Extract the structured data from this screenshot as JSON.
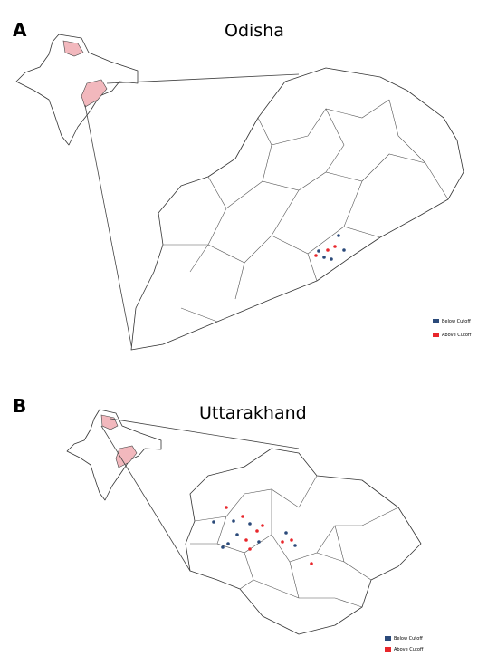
{
  "panels": [
    {
      "label": "A",
      "title": "Odisha",
      "legend": [
        {
          "label": "Below Cutoff",
          "color": "#2b4a7a"
        },
        {
          "label": "Above Cutoff",
          "color": "#e8262b"
        }
      ]
    },
    {
      "label": "B",
      "title": "Uttarakhand",
      "legend": [
        {
          "label": "Below Cutoff",
          "color": "#2b4a7a"
        },
        {
          "label": "Above Cutoff",
          "color": "#e8262b"
        }
      ]
    }
  ]
}
